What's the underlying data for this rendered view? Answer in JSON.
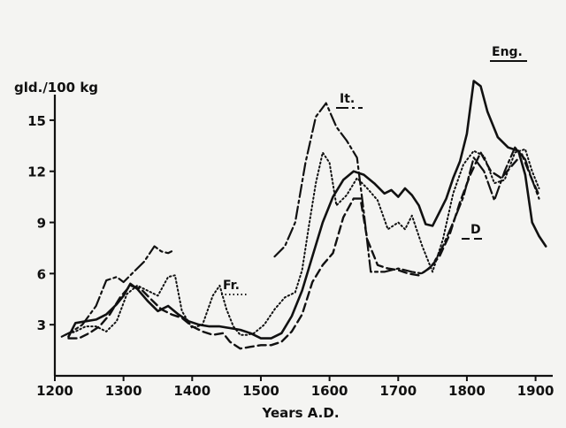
{
  "chart_data": {
    "type": "line",
    "title": "",
    "xlabel": "Years A.D.",
    "ylabel": "gld./100 kg",
    "xlim": [
      1200,
      1925
    ],
    "ylim": [
      0,
      16.5
    ],
    "x_ticks": [
      1200,
      1300,
      1400,
      1500,
      1600,
      1700,
      1800,
      1900
    ],
    "y_ticks": [
      3,
      6,
      9,
      12,
      15
    ],
    "grid": false,
    "legend": "inline labels next to lines",
    "series": [
      {
        "name": "Eng.",
        "style": "solid",
        "color": "#111111",
        "points": [
          [
            1220,
            2.3
          ],
          [
            1230,
            3.1
          ],
          [
            1245,
            3.2
          ],
          [
            1260,
            3.3
          ],
          [
            1275,
            3.6
          ],
          [
            1290,
            4.2
          ],
          [
            1300,
            4.7
          ],
          [
            1310,
            5.4
          ],
          [
            1320,
            5.1
          ],
          [
            1335,
            4.4
          ],
          [
            1350,
            3.8
          ],
          [
            1365,
            4.1
          ],
          [
            1380,
            3.6
          ],
          [
            1395,
            3.2
          ],
          [
            1410,
            3.0
          ],
          [
            1425,
            2.9
          ],
          [
            1440,
            2.9
          ],
          [
            1455,
            2.8
          ],
          [
            1470,
            2.7
          ],
          [
            1485,
            2.5
          ],
          [
            1500,
            2.2
          ],
          [
            1515,
            2.2
          ],
          [
            1530,
            2.5
          ],
          [
            1545,
            3.5
          ],
          [
            1560,
            5.0
          ],
          [
            1575,
            7.0
          ],
          [
            1590,
            9.0
          ],
          [
            1605,
            10.5
          ],
          [
            1620,
            11.5
          ],
          [
            1635,
            12.0
          ],
          [
            1650,
            11.8
          ],
          [
            1665,
            11.3
          ],
          [
            1680,
            10.7
          ],
          [
            1690,
            10.9
          ],
          [
            1700,
            10.5
          ],
          [
            1710,
            11.0
          ],
          [
            1720,
            10.6
          ],
          [
            1730,
            10.0
          ],
          [
            1740,
            8.9
          ],
          [
            1750,
            8.8
          ],
          [
            1760,
            9.6
          ],
          [
            1770,
            10.4
          ],
          [
            1780,
            11.6
          ],
          [
            1790,
            12.6
          ],
          [
            1800,
            14.2
          ],
          [
            1810,
            17.3
          ],
          [
            1820,
            17.0
          ],
          [
            1830,
            15.5
          ],
          [
            1845,
            14.0
          ],
          [
            1860,
            13.4
          ],
          [
            1875,
            13.2
          ],
          [
            1885,
            11.8
          ],
          [
            1895,
            9.0
          ],
          [
            1905,
            8.2
          ],
          [
            1915,
            7.6
          ]
        ]
      },
      {
        "name": "It.",
        "style": "dash-dot",
        "color": "#111111",
        "points": [
          [
            1210,
            2.3
          ],
          [
            1225,
            2.6
          ],
          [
            1240,
            3.0
          ],
          [
            1260,
            4.1
          ],
          [
            1275,
            5.6
          ],
          [
            1290,
            5.8
          ],
          [
            1300,
            5.5
          ],
          [
            1315,
            6.1
          ],
          [
            1330,
            6.7
          ],
          [
            1345,
            7.6
          ],
          [
            1355,
            7.3
          ],
          [
            1365,
            7.2
          ],
          [
            1370,
            7.3
          ],
          [
            1520,
            7.0
          ],
          [
            1535,
            7.6
          ],
          [
            1550,
            9.0
          ],
          [
            1565,
            12.5
          ],
          [
            1580,
            15.2
          ],
          [
            1595,
            16.0
          ],
          [
            1610,
            14.6
          ],
          [
            1625,
            13.8
          ],
          [
            1640,
            12.8
          ],
          [
            1650,
            9.6
          ],
          [
            1660,
            6.1
          ],
          [
            1680,
            6.1
          ],
          [
            1700,
            6.3
          ],
          [
            1720,
            6.1
          ],
          [
            1735,
            6.0
          ],
          [
            1750,
            6.5
          ],
          [
            1765,
            7.6
          ],
          [
            1780,
            9.0
          ],
          [
            1795,
            10.5
          ],
          [
            1810,
            12.8
          ],
          [
            1825,
            12.0
          ],
          [
            1840,
            10.3
          ],
          [
            1855,
            12.0
          ],
          [
            1870,
            13.4
          ],
          [
            1885,
            12.7
          ],
          [
            1895,
            11.5
          ],
          [
            1905,
            10.4
          ]
        ]
      },
      {
        "name": "Fr.",
        "style": "dotted",
        "color": "#111111",
        "points": [
          [
            1215,
            2.4
          ],
          [
            1230,
            2.6
          ],
          [
            1245,
            2.9
          ],
          [
            1260,
            2.9
          ],
          [
            1275,
            2.6
          ],
          [
            1290,
            3.2
          ],
          [
            1305,
            4.8
          ],
          [
            1320,
            5.3
          ],
          [
            1335,
            5.0
          ],
          [
            1350,
            4.7
          ],
          [
            1365,
            5.8
          ],
          [
            1375,
            5.9
          ],
          [
            1385,
            3.8
          ],
          [
            1400,
            2.8
          ],
          [
            1415,
            3.0
          ],
          [
            1430,
            4.7
          ],
          [
            1440,
            5.3
          ],
          [
            1450,
            3.9
          ],
          [
            1460,
            2.9
          ],
          [
            1470,
            2.4
          ],
          [
            1480,
            2.4
          ],
          [
            1490,
            2.5
          ],
          [
            1505,
            3.0
          ],
          [
            1520,
            3.9
          ],
          [
            1535,
            4.6
          ],
          [
            1550,
            4.9
          ],
          [
            1560,
            6.2
          ],
          [
            1570,
            8.8
          ],
          [
            1580,
            11.3
          ],
          [
            1590,
            13.1
          ],
          [
            1600,
            12.5
          ],
          [
            1610,
            10.0
          ],
          [
            1625,
            10.6
          ],
          [
            1640,
            11.6
          ],
          [
            1655,
            11.0
          ],
          [
            1670,
            10.3
          ],
          [
            1685,
            8.6
          ],
          [
            1700,
            9.0
          ],
          [
            1710,
            8.6
          ],
          [
            1720,
            9.4
          ],
          [
            1735,
            7.6
          ],
          [
            1750,
            6.1
          ],
          [
            1765,
            8.0
          ],
          [
            1780,
            10.7
          ],
          [
            1795,
            12.4
          ],
          [
            1810,
            13.2
          ],
          [
            1825,
            12.9
          ],
          [
            1840,
            11.3
          ],
          [
            1855,
            11.5
          ],
          [
            1870,
            13.1
          ],
          [
            1885,
            13.3
          ],
          [
            1895,
            12.0
          ],
          [
            1905,
            11.0
          ]
        ]
      },
      {
        "name": "D",
        "style": "dashed",
        "color": "#111111",
        "points": [
          [
            1220,
            2.2
          ],
          [
            1235,
            2.2
          ],
          [
            1250,
            2.5
          ],
          [
            1265,
            2.9
          ],
          [
            1280,
            3.6
          ],
          [
            1295,
            4.6
          ],
          [
            1310,
            5.3
          ],
          [
            1325,
            5.1
          ],
          [
            1340,
            4.5
          ],
          [
            1355,
            3.9
          ],
          [
            1370,
            3.6
          ],
          [
            1385,
            3.4
          ],
          [
            1400,
            2.9
          ],
          [
            1415,
            2.6
          ],
          [
            1430,
            2.4
          ],
          [
            1445,
            2.5
          ],
          [
            1455,
            2.0
          ],
          [
            1470,
            1.6
          ],
          [
            1485,
            1.7
          ],
          [
            1500,
            1.8
          ],
          [
            1515,
            1.8
          ],
          [
            1530,
            2.0
          ],
          [
            1545,
            2.6
          ],
          [
            1560,
            3.6
          ],
          [
            1575,
            5.5
          ],
          [
            1590,
            6.5
          ],
          [
            1605,
            7.2
          ],
          [
            1620,
            9.3
          ],
          [
            1635,
            10.4
          ],
          [
            1645,
            10.4
          ],
          [
            1655,
            8.0
          ],
          [
            1670,
            6.5
          ],
          [
            1685,
            6.3
          ],
          [
            1700,
            6.2
          ],
          [
            1715,
            6.0
          ],
          [
            1730,
            5.9
          ],
          [
            1745,
            6.3
          ],
          [
            1760,
            7.0
          ],
          [
            1775,
            8.3
          ],
          [
            1790,
            10.2
          ],
          [
            1805,
            11.8
          ],
          [
            1820,
            13.1
          ],
          [
            1835,
            12.0
          ],
          [
            1850,
            11.6
          ],
          [
            1865,
            12.3
          ],
          [
            1880,
            13.0
          ],
          [
            1895,
            11.5
          ],
          [
            1905,
            10.6
          ]
        ]
      }
    ]
  }
}
